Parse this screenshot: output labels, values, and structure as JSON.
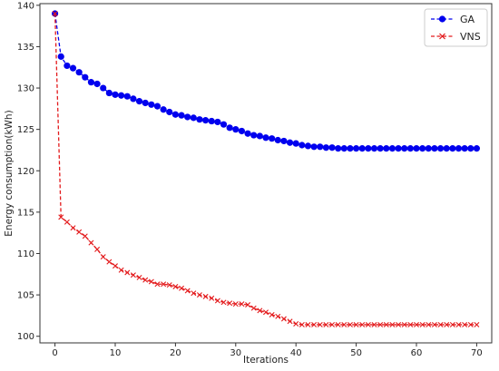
{
  "chart_data": {
    "type": "line",
    "xlabel": "Iterations",
    "ylabel": "Energy consumption(kWh)",
    "xlim": [
      -2.5,
      72.5
    ],
    "ylim": [
      99.2,
      140.2
    ],
    "xticks": [
      0,
      10,
      20,
      30,
      40,
      50,
      60,
      70
    ],
    "yticks": [
      100,
      105,
      110,
      115,
      120,
      125,
      130,
      135,
      140
    ],
    "grid": false,
    "legend_position": "top-right",
    "series": [
      {
        "name": "GA",
        "color": "#0000ee",
        "line_style": "dashed",
        "marker": "circle",
        "x": [
          0,
          1,
          2,
          3,
          4,
          5,
          6,
          7,
          8,
          9,
          10,
          11,
          12,
          13,
          14,
          15,
          16,
          17,
          18,
          19,
          20,
          21,
          22,
          23,
          24,
          25,
          26,
          27,
          28,
          29,
          30,
          31,
          32,
          33,
          34,
          35,
          36,
          37,
          38,
          39,
          40,
          41,
          42,
          43,
          44,
          45,
          46,
          47,
          48,
          49,
          50,
          51,
          52,
          53,
          54,
          55,
          56,
          57,
          58,
          59,
          60,
          61,
          62,
          63,
          64,
          65,
          66,
          67,
          68,
          69,
          70
        ],
        "values": [
          139.0,
          133.8,
          132.7,
          132.4,
          131.9,
          131.3,
          130.7,
          130.5,
          130.0,
          129.4,
          129.2,
          129.1,
          129.0,
          128.7,
          128.4,
          128.2,
          128.0,
          127.8,
          127.4,
          127.1,
          126.8,
          126.7,
          126.5,
          126.4,
          126.2,
          126.1,
          126.0,
          125.9,
          125.6,
          125.2,
          125.0,
          124.8,
          124.5,
          124.3,
          124.2,
          124.0,
          123.9,
          123.7,
          123.6,
          123.4,
          123.3,
          123.1,
          123.0,
          122.9,
          122.9,
          122.8,
          122.8,
          122.7,
          122.7,
          122.7,
          122.7,
          122.7,
          122.7,
          122.7,
          122.7,
          122.7,
          122.7,
          122.7,
          122.7,
          122.7,
          122.7,
          122.7,
          122.7,
          122.7,
          122.7,
          122.7,
          122.7,
          122.7,
          122.7,
          122.7,
          122.7
        ]
      },
      {
        "name": "VNS",
        "color": "#e31a1c",
        "line_style": "dashed",
        "marker": "x",
        "x": [
          0,
          1,
          2,
          3,
          4,
          5,
          6,
          7,
          8,
          9,
          10,
          11,
          12,
          13,
          14,
          15,
          16,
          17,
          18,
          19,
          20,
          21,
          22,
          23,
          24,
          25,
          26,
          27,
          28,
          29,
          30,
          31,
          32,
          33,
          34,
          35,
          36,
          37,
          38,
          39,
          40,
          41,
          42,
          43,
          44,
          45,
          46,
          47,
          48,
          49,
          50,
          51,
          52,
          53,
          54,
          55,
          56,
          57,
          58,
          59,
          60,
          61,
          62,
          63,
          64,
          65,
          66,
          67,
          68,
          69,
          70
        ],
        "values": [
          139.0,
          114.4,
          113.8,
          113.1,
          112.6,
          112.1,
          111.3,
          110.5,
          109.6,
          109.0,
          108.5,
          108.0,
          107.7,
          107.4,
          107.1,
          106.8,
          106.6,
          106.3,
          106.3,
          106.2,
          106.0,
          105.8,
          105.5,
          105.2,
          105.0,
          104.8,
          104.6,
          104.3,
          104.1,
          104.0,
          103.9,
          103.9,
          103.8,
          103.4,
          103.1,
          102.9,
          102.6,
          102.4,
          102.1,
          101.8,
          101.5,
          101.4,
          101.4,
          101.4,
          101.4,
          101.4,
          101.4,
          101.4,
          101.4,
          101.4,
          101.4,
          101.4,
          101.4,
          101.4,
          101.4,
          101.4,
          101.4,
          101.4,
          101.4,
          101.4,
          101.4,
          101.4,
          101.4,
          101.4,
          101.4,
          101.4,
          101.4,
          101.4,
          101.4,
          101.4,
          101.4
        ]
      }
    ]
  }
}
